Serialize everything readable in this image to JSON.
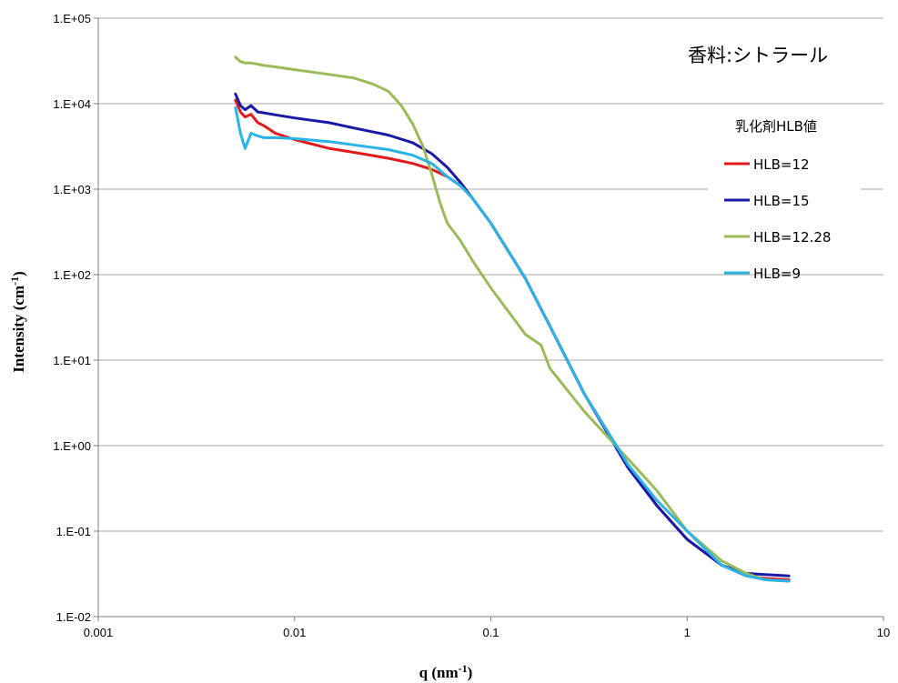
{
  "chart_data": {
    "type": "line",
    "title": "香料:シトラール",
    "xlabel": "q (nm",
    "xlabel_sup": "-1",
    "xlabel_end": ")",
    "ylabel": "Intensity  (cm",
    "ylabel_sup": "-1",
    "ylabel_end": ")",
    "x_scale": "log",
    "y_scale": "log",
    "xlim": [
      0.001,
      10
    ],
    "ylim": [
      0.01,
      100000
    ],
    "x_ticks": [
      {
        "value": 0.001,
        "label": "0.001"
      },
      {
        "value": 0.01,
        "label": "0.01"
      },
      {
        "value": 0.1,
        "label": "0.1"
      },
      {
        "value": 1,
        "label": "1"
      },
      {
        "value": 10,
        "label": "10"
      }
    ],
    "y_ticks": [
      {
        "value": 0.01,
        "label": "1.E-02"
      },
      {
        "value": 0.1,
        "label": "1.E-01"
      },
      {
        "value": 1,
        "label": "1.E+00"
      },
      {
        "value": 10,
        "label": "1.E+01"
      },
      {
        "value": 100,
        "label": "1.E+02"
      },
      {
        "value": 1000,
        "label": "1.E+03"
      },
      {
        "value": 10000,
        "label": "1.E+04"
      },
      {
        "value": 100000,
        "label": "1.E+05"
      }
    ],
    "grid": "horizontal",
    "legend_title": "乳化剤HLB値",
    "legend_position": "right",
    "series": [
      {
        "name": "HLB=12",
        "color": "#e31a1c",
        "x": [
          0.005,
          0.0053,
          0.0056,
          0.006,
          0.0065,
          0.007,
          0.008,
          0.01,
          0.015,
          0.02,
          0.03,
          0.04,
          0.05,
          0.06,
          0.07,
          0.08,
          0.1,
          0.15,
          0.2,
          0.3,
          0.5,
          0.7,
          1.0,
          1.5,
          2.0,
          2.5,
          3.3
        ],
        "y": [
          11000,
          8000,
          7000,
          7500,
          6000,
          5500,
          4500,
          3800,
          3000,
          2700,
          2300,
          2000,
          1700,
          1400,
          1100,
          800,
          400,
          90,
          25,
          4,
          0.6,
          0.2,
          0.08,
          0.04,
          0.03,
          0.028,
          0.027
        ]
      },
      {
        "name": "HLB=15",
        "color": "#1a1aa8",
        "x": [
          0.005,
          0.0053,
          0.0056,
          0.006,
          0.0065,
          0.007,
          0.008,
          0.01,
          0.015,
          0.02,
          0.03,
          0.04,
          0.05,
          0.06,
          0.07,
          0.08,
          0.1,
          0.15,
          0.2,
          0.3,
          0.5,
          0.7,
          1.0,
          1.5,
          2.0,
          2.5,
          3.3
        ],
        "y": [
          13000,
          9500,
          8500,
          9500,
          8000,
          7800,
          7400,
          6800,
          6000,
          5200,
          4300,
          3500,
          2600,
          1800,
          1200,
          800,
          400,
          90,
          25,
          4,
          0.55,
          0.2,
          0.08,
          0.04,
          0.032,
          0.031,
          0.03
        ]
      },
      {
        "name": "HLB=12.28",
        "color": "#9bbb59",
        "x": [
          0.005,
          0.0053,
          0.0056,
          0.006,
          0.007,
          0.008,
          0.01,
          0.015,
          0.02,
          0.025,
          0.03,
          0.035,
          0.04,
          0.045,
          0.05,
          0.055,
          0.06,
          0.07,
          0.08,
          0.1,
          0.15,
          0.18,
          0.2,
          0.3,
          0.5,
          0.7,
          1.0,
          1.5,
          2.0,
          2.5,
          3.3
        ],
        "y": [
          35000,
          31000,
          30000,
          30000,
          28000,
          27000,
          25000,
          22000,
          20000,
          17000,
          14000,
          9500,
          5800,
          3200,
          1500,
          700,
          400,
          250,
          150,
          70,
          20,
          15,
          8,
          2.5,
          0.7,
          0.3,
          0.1,
          0.045,
          0.032,
          0.027,
          0.026
        ]
      },
      {
        "name": "HLB=9",
        "color": "#2ab3e6",
        "x": [
          0.005,
          0.0053,
          0.0056,
          0.006,
          0.0065,
          0.007,
          0.008,
          0.01,
          0.015,
          0.02,
          0.03,
          0.04,
          0.05,
          0.06,
          0.07,
          0.08,
          0.1,
          0.15,
          0.2,
          0.3,
          0.5,
          0.7,
          1.0,
          1.5,
          2.0,
          2.5,
          3.3
        ],
        "y": [
          9000,
          4500,
          3000,
          4500,
          4200,
          4000,
          4000,
          3900,
          3600,
          3300,
          2900,
          2500,
          2000,
          1400,
          1100,
          800,
          400,
          90,
          25,
          4,
          0.6,
          0.23,
          0.1,
          0.04,
          0.03,
          0.027,
          0.026
        ]
      }
    ]
  }
}
